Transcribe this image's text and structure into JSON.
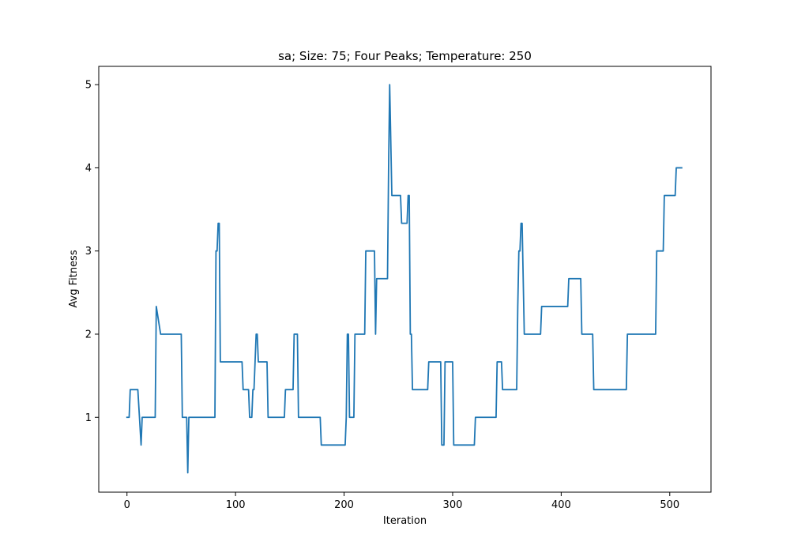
{
  "chart_data": {
    "type": "line",
    "title": "sa; Size: 75; Four Peaks; Temperature: 250",
    "xlabel": "Iteration",
    "ylabel": "Avg Fitness",
    "xlim": [
      -26,
      538
    ],
    "ylim": [
      0.1,
      5.22
    ],
    "xticks": [
      0,
      100,
      200,
      300,
      400,
      500
    ],
    "yticks": [
      1,
      2,
      3,
      4,
      5
    ],
    "grid": false,
    "line_color": "#1f77b4",
    "series": [
      {
        "name": "Avg Fitness",
        "x": [
          0,
          2,
          3,
          10,
          13,
          14,
          26,
          27,
          31,
          50,
          51,
          55,
          56,
          57,
          81,
          82,
          83,
          84,
          85,
          86,
          106,
          107,
          112,
          113,
          115,
          116,
          117,
          119,
          120,
          121,
          122,
          129,
          130,
          145,
          146,
          153,
          154,
          157,
          158,
          178,
          179,
          201,
          202,
          203,
          204,
          205,
          209,
          210,
          219,
          220,
          228,
          229,
          230,
          240,
          241,
          242,
          243,
          244,
          245,
          252,
          253,
          258,
          259,
          260,
          261,
          262,
          263,
          277,
          278,
          289,
          290,
          292,
          293,
          300,
          301,
          320,
          321,
          340,
          341,
          345,
          346,
          359,
          360,
          361,
          362,
          363,
          364,
          366,
          367,
          381,
          382,
          406,
          407,
          418,
          419,
          429,
          430,
          460,
          461,
          487,
          488,
          494,
          495,
          505,
          506,
          511
        ],
        "y": [
          1.0,
          1.0,
          1.333,
          1.333,
          0.667,
          1.0,
          1.0,
          2.333,
          2.0,
          2.0,
          1.0,
          1.0,
          0.333,
          1.0,
          1.0,
          3.0,
          3.0,
          3.333,
          3.333,
          1.667,
          1.667,
          1.333,
          1.333,
          1.0,
          1.0,
          1.333,
          1.333,
          2.0,
          2.0,
          1.667,
          1.667,
          1.667,
          1.0,
          1.0,
          1.333,
          1.333,
          2.0,
          2.0,
          1.0,
          1.0,
          0.667,
          0.667,
          1.0,
          2.0,
          2.0,
          1.0,
          1.0,
          2.0,
          2.0,
          3.0,
          3.0,
          2.0,
          2.667,
          2.667,
          4.0,
          5.0,
          4.333,
          3.667,
          3.667,
          3.667,
          3.333,
          3.333,
          3.667,
          3.667,
          2.0,
          2.0,
          1.333,
          1.333,
          1.667,
          1.667,
          0.667,
          0.667,
          1.667,
          1.667,
          0.667,
          0.667,
          1.0,
          1.0,
          1.667,
          1.667,
          1.333,
          1.333,
          2.333,
          3.0,
          3.0,
          3.333,
          3.333,
          2.0,
          2.0,
          2.0,
          2.333,
          2.333,
          2.667,
          2.667,
          2.0,
          2.0,
          1.333,
          1.333,
          2.0,
          2.0,
          3.0,
          3.0,
          3.667,
          3.667,
          4.0,
          4.0
        ]
      }
    ]
  }
}
